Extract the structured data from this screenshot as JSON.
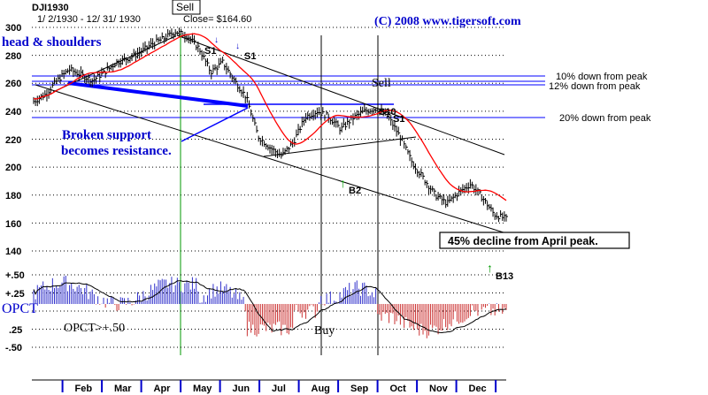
{
  "header": {
    "symbol": "DJI1930",
    "date_range": "1/ 2/1930 - 12/ 31/ 1930",
    "close_text": "Close= $164.60",
    "copyright": "(C) 2008  www.tigersoft.com"
  },
  "colors": {
    "price_bars": "#000000",
    "moving_average": "#ff0000",
    "annotation_blue": "#0000cc",
    "support_line": "#0000ff",
    "signal_green": "#009900",
    "opct_positive": "#3333cc",
    "opct_negative": "#cc3333"
  },
  "annotations": {
    "head_shoulders": "head & shoulders",
    "broken_support_1": "Broken support",
    "broken_support_2": "becomes resistance.",
    "sell_box": "Sell",
    "sell_sep": "Sell",
    "s1_a": "S1",
    "s1_b": "S1",
    "s10": "S10",
    "s1_c": "S1",
    "b2": "B2",
    "b13": "B13",
    "decline_box": "45% decline from April peak.",
    "buy": "Buy",
    "opct_rule": "OPCT>+.50"
  },
  "levels": {
    "ten": "10% down from peak",
    "twelve": "12% down from peak",
    "twenty": "20% down from peak"
  },
  "chart_data": [
    {
      "type": "line",
      "title": "DJI1930",
      "y_ticks": [
        "300",
        "280",
        "260",
        "240",
        "220",
        "200",
        "180",
        "160",
        "140"
      ],
      "ylim": [
        140,
        300
      ],
      "x_labels": [
        "Feb",
        "Mar",
        "Apr",
        "May",
        "Jun",
        "Jul",
        "Aug",
        "Sep",
        "Oct",
        "Nov",
        "Dec"
      ],
      "series": [
        {
          "x": [
            0,
            0.3,
            0.6,
            0.9,
            1.2,
            1.5,
            1.8,
            2.1,
            2.4,
            2.7,
            3.0,
            3.3,
            3.6,
            3.9,
            4.2,
            4.5,
            4.8,
            5.1,
            5.4,
            5.7,
            6.0,
            6.3,
            6.6,
            6.9,
            7.2,
            7.5,
            7.8,
            8.1,
            8.4,
            8.7,
            9.0,
            9.3,
            9.6,
            9.9,
            10.2,
            10.5,
            10.8,
            11.1,
            11.4,
            11.7,
            12.0
          ],
          "values": [
            247,
            252,
            262,
            270,
            266,
            262,
            268,
            275,
            278,
            282,
            288,
            292,
            297,
            294,
            285,
            268,
            275,
            262,
            250,
            222,
            214,
            208,
            218,
            236,
            240,
            236,
            227,
            235,
            240,
            242,
            236,
            222,
            204,
            192,
            180,
            174,
            182,
            188,
            178,
            166,
            163
          ]
        }
      ]
    },
    {
      "type": "bar",
      "title": "OPCT",
      "y_ticks": [
        "+.50",
        "+.25",
        ".25",
        "-.25",
        "-.50"
      ],
      "ylim": [
        -0.5,
        0.5
      ]
    }
  ]
}
